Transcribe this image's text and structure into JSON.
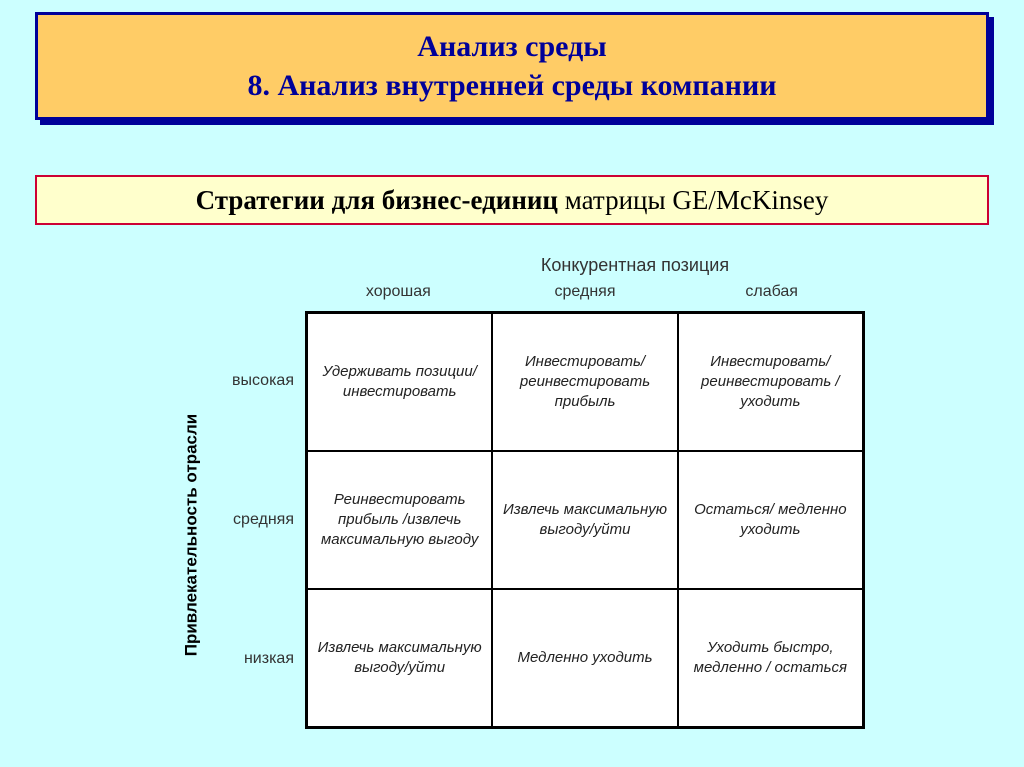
{
  "slide": {
    "title_line1": "Анализ среды",
    "title_line2": "8. Анализ внутренней среды компании",
    "subtitle_bold": "Стратегии для бизнес-единиц",
    "subtitle_rest": " матрицы GE/McKinsey"
  },
  "matrix": {
    "top_axis_title": "Конкурентная позиция",
    "left_axis_title": "Привлекательность отрасли",
    "col_headers": [
      "хорошая",
      "средняя",
      "слабая"
    ],
    "row_headers": [
      "высокая",
      "средняя",
      "низкая"
    ],
    "cells": [
      [
        "Удерживать позиции/ инвестировать",
        "Инвестировать/ реинвестировать прибыль",
        "Инвестировать/ реинвестировать / уходить"
      ],
      [
        "Реинвестировать прибыль /извлечь максимальную выгоду",
        "Извлечь максимальную выгоду/уйти",
        "Остаться/ медленно уходить"
      ],
      [
        "Извлечь максимальную выгоду/уйти",
        "Медленно уходить",
        "Уходить быстро, медленно / остаться"
      ]
    ]
  },
  "colors": {
    "background": "#ccffff",
    "title_bg": "#ffcc66",
    "title_border": "#000099",
    "title_text": "#000099",
    "subtitle_bg": "#ffffcc",
    "subtitle_border": "#cc0033",
    "grid_border": "#000000",
    "cell_bg": "#ffffff"
  },
  "typography": {
    "title_fontsize": 30,
    "subtitle_fontsize": 27,
    "axis_title_fontsize": 17,
    "header_fontsize": 16,
    "cell_fontsize": 15
  }
}
